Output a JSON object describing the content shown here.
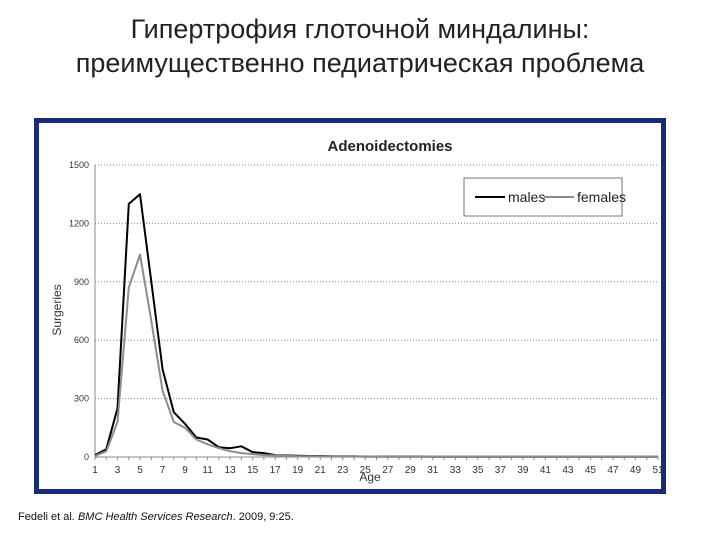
{
  "slide": {
    "title_line1": "Гипертрофия глоточной миндалины:",
    "title_line2": "преимущественно педиатрическая проблема",
    "citation": {
      "authors": "Fedeli et al.",
      "journal": "BMC Health Services Research",
      "details": ". 2009, 9:25."
    }
  },
  "chart_data": {
    "type": "line",
    "title": "Adenoidectomies",
    "xlabel": "Age",
    "ylabel": "Surgeries",
    "xlim": [
      1,
      51
    ],
    "ylim": [
      0,
      1500
    ],
    "x_ticks": [
      1,
      3,
      5,
      7,
      9,
      11,
      13,
      15,
      17,
      19,
      21,
      23,
      25,
      27,
      29,
      31,
      33,
      35,
      37,
      39,
      41,
      43,
      45,
      47,
      49,
      51
    ],
    "y_ticks": [
      0,
      300,
      600,
      900,
      1200,
      1500
    ],
    "grid": "horizontal-dotted",
    "legend": "top-right",
    "x": [
      1,
      2,
      3,
      4,
      5,
      6,
      7,
      8,
      9,
      10,
      11,
      12,
      13,
      14,
      15,
      16,
      17,
      18,
      19,
      20,
      21,
      22,
      23,
      24,
      25,
      26,
      27,
      28,
      29,
      30,
      31,
      32,
      33,
      34,
      35,
      36,
      37,
      38,
      39,
      40,
      41,
      42,
      43,
      44,
      45,
      46,
      47,
      48,
      49,
      50,
      51
    ],
    "series": [
      {
        "name": "males",
        "color": "#000000",
        "values": [
          10,
          40,
          250,
          1300,
          1350,
          900,
          450,
          230,
          170,
          100,
          90,
          50,
          45,
          55,
          25,
          20,
          10,
          8,
          6,
          5,
          5,
          4,
          3,
          3,
          2,
          2,
          2,
          2,
          2,
          2,
          1,
          1,
          1,
          1,
          1,
          1,
          1,
          1,
          1,
          1,
          1,
          1,
          1,
          1,
          1,
          1,
          1,
          1,
          1,
          1,
          1
        ]
      },
      {
        "name": "females",
        "color": "#8c8c8c",
        "values": [
          5,
          30,
          180,
          870,
          1040,
          700,
          340,
          180,
          150,
          90,
          65,
          45,
          30,
          20,
          15,
          10,
          8,
          6,
          4,
          4,
          3,
          3,
          2,
          2,
          2,
          2,
          1,
          1,
          1,
          1,
          1,
          1,
          1,
          1,
          1,
          1,
          1,
          1,
          1,
          1,
          1,
          1,
          1,
          1,
          1,
          1,
          1,
          1,
          1,
          1,
          1
        ]
      }
    ]
  }
}
